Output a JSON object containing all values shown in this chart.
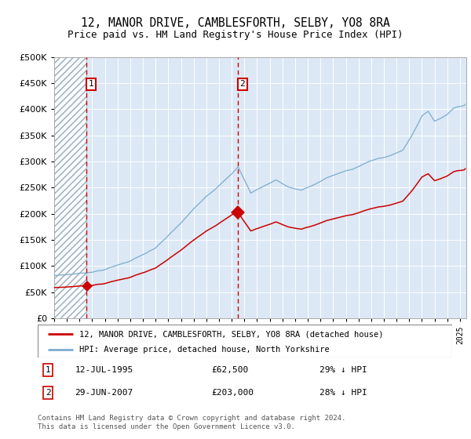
{
  "title": "12, MANOR DRIVE, CAMBLESFORTH, SELBY, YO8 8RA",
  "subtitle": "Price paid vs. HM Land Registry's House Price Index (HPI)",
  "legend_line1": "12, MANOR DRIVE, CAMBLESFORTH, SELBY, YO8 8RA (detached house)",
  "legend_line2": "HPI: Average price, detached house, North Yorkshire",
  "purchase1_date": "12-JUL-1995",
  "purchase1_price": 62500,
  "purchase1_label": "29% ↓ HPI",
  "purchase2_date": "29-JUN-2007",
  "purchase2_price": 203000,
  "purchase2_label": "28% ↓ HPI",
  "purchase1_year": 1995.53,
  "purchase2_year": 2007.49,
  "hpi_color": "#7aadcf",
  "price_color": "#cc0000",
  "vline_color": "#cc0000",
  "dot_color": "#cc0000",
  "background_color": "#dce8f5",
  "hatch_bg": "#e8e8e8",
  "ylim_max": 500000,
  "xmin": 1993.0,
  "xmax": 2025.5,
  "footer": "Contains HM Land Registry data © Crown copyright and database right 2024.\nThis data is licensed under the Open Government Licence v3.0."
}
